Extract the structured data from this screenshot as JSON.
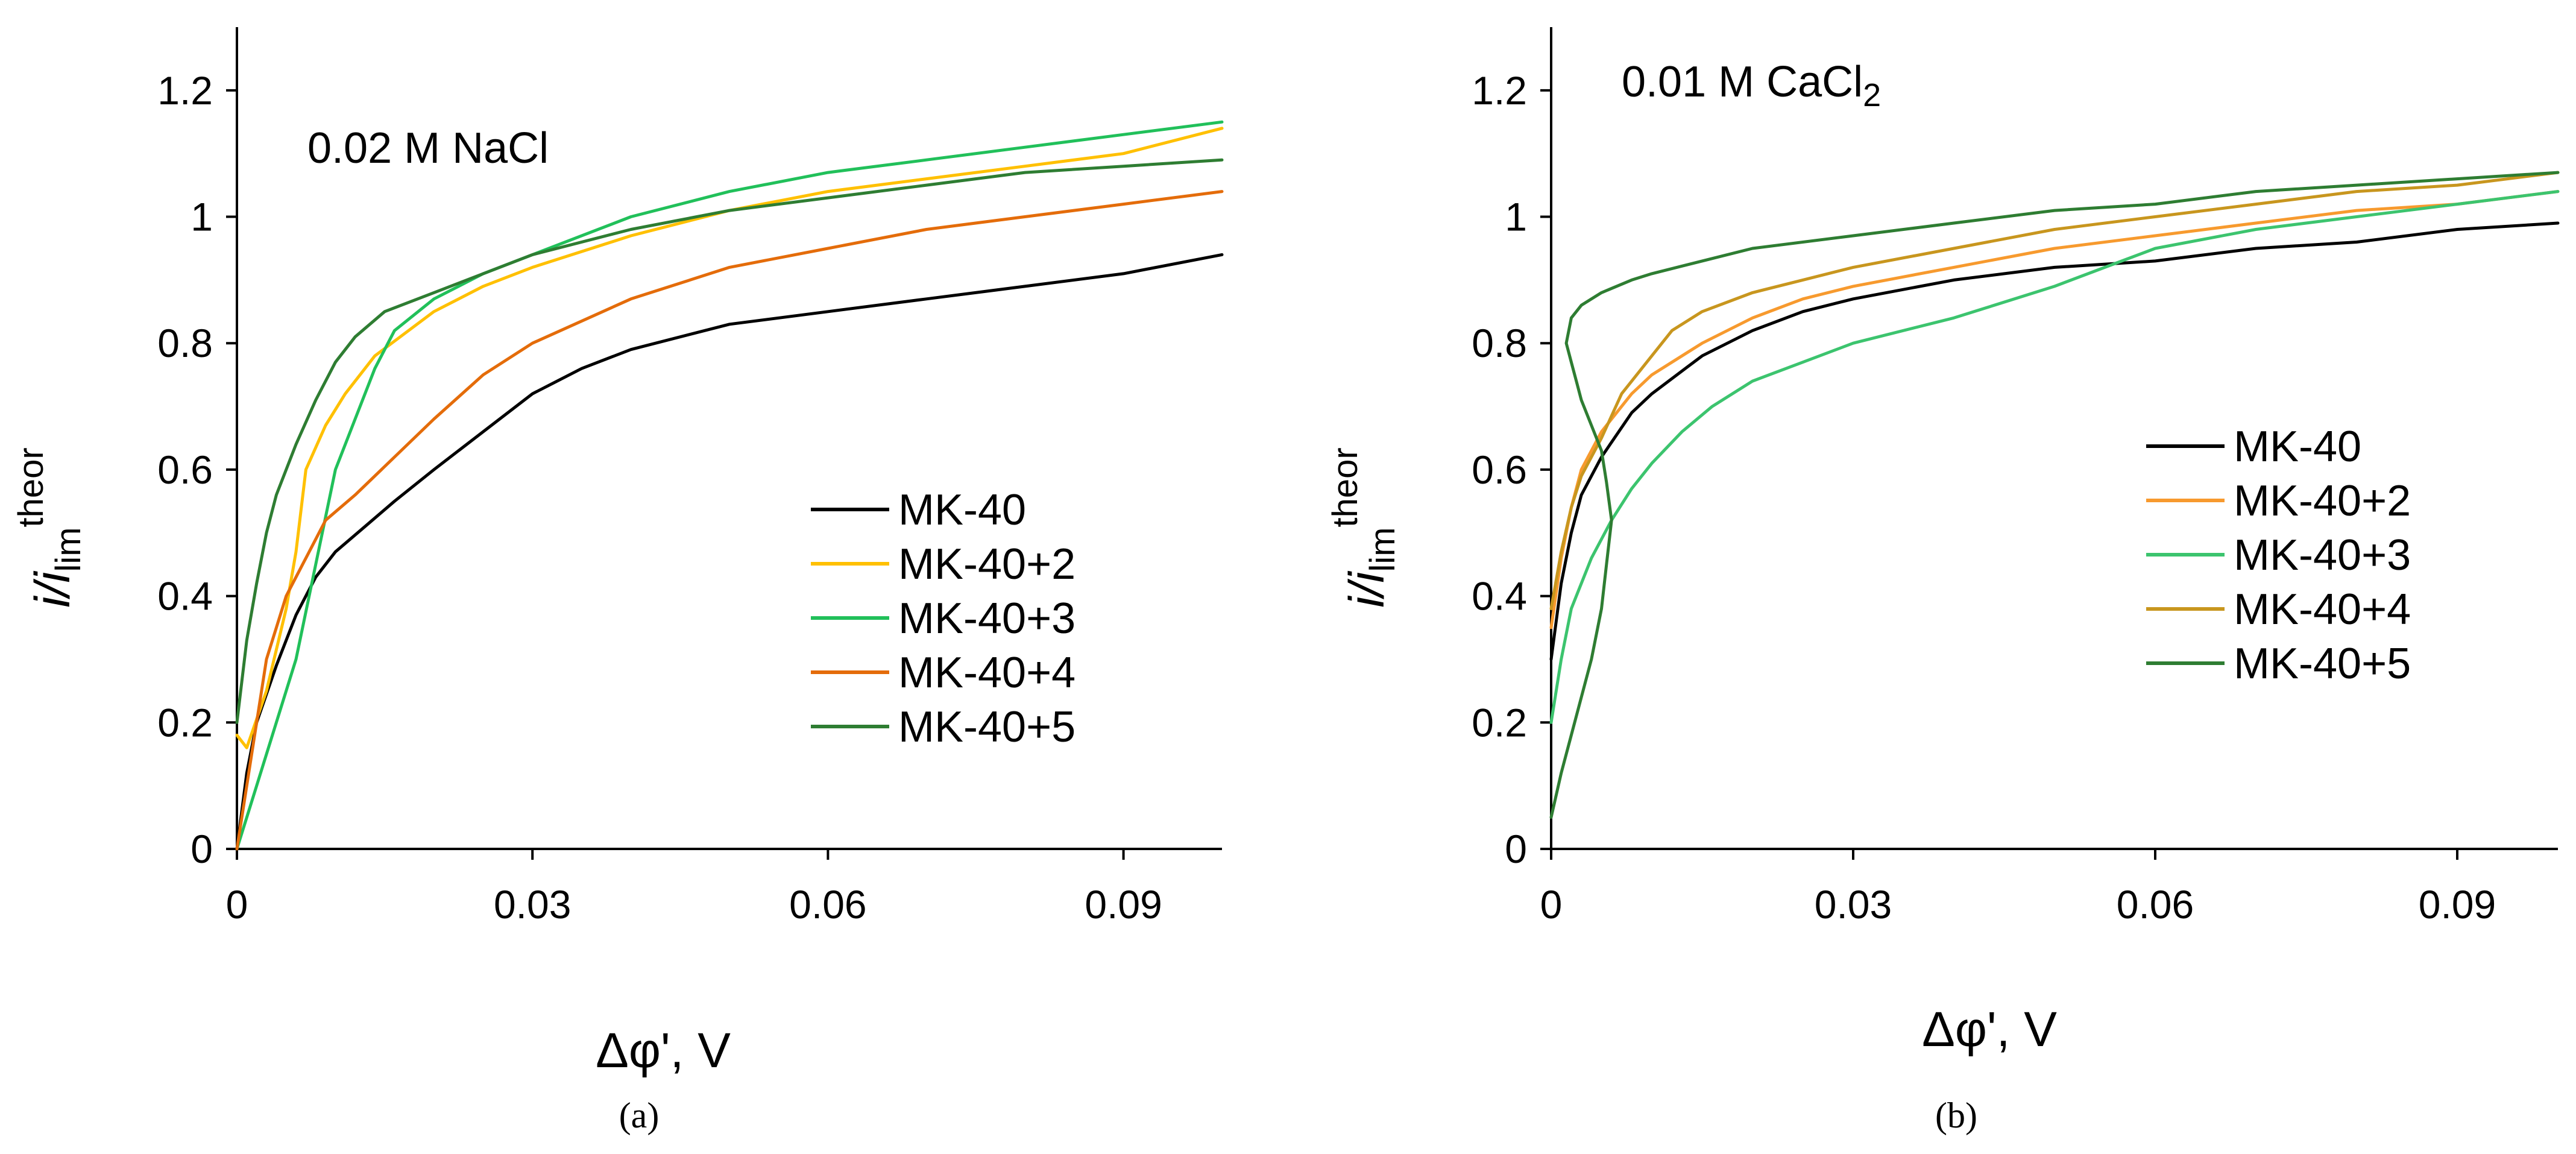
{
  "chart_data": [
    {
      "type": "line",
      "panel_label": "(a)",
      "annotation": "0.02 M NaCl",
      "xlabel": "Δφ', V",
      "ylabel": {
        "main": "i/i",
        "sub": "lim",
        "sup": "theor"
      },
      "xlim": [
        0,
        0.1
      ],
      "ylim": [
        0,
        1.3
      ],
      "x_ticks": [
        0,
        0.03,
        0.06,
        0.09
      ],
      "x_tick_labels": [
        "0",
        "0.03",
        "0.06",
        "0.09"
      ],
      "y_ticks": [
        0,
        0.2,
        0.4,
        0.6,
        0.8,
        1,
        1.2
      ],
      "y_tick_labels": [
        "0",
        "0.2",
        "0.4",
        "0.6",
        "0.8",
        "1",
        "1.2"
      ],
      "legend_position": "lower-right",
      "series": [
        {
          "name": "MK-40",
          "color": "#000000",
          "x": [
            0,
            0.001,
            0.002,
            0.004,
            0.006,
            0.008,
            0.01,
            0.013,
            0.016,
            0.02,
            0.025,
            0.03,
            0.035,
            0.04,
            0.05,
            0.06,
            0.07,
            0.08,
            0.09,
            0.1
          ],
          "y": [
            0,
            0.12,
            0.2,
            0.29,
            0.37,
            0.43,
            0.47,
            0.51,
            0.55,
            0.6,
            0.66,
            0.72,
            0.76,
            0.79,
            0.83,
            0.85,
            0.87,
            0.89,
            0.91,
            0.94
          ]
        },
        {
          "name": "MK-40+2",
          "color": "#FFC000",
          "x": [
            0,
            0.001,
            0.003,
            0.005,
            0.006,
            0.007,
            0.009,
            0.011,
            0.014,
            0.02,
            0.025,
            0.03,
            0.04,
            0.05,
            0.06,
            0.07,
            0.08,
            0.09,
            0.1
          ],
          "y": [
            0.18,
            0.16,
            0.25,
            0.38,
            0.47,
            0.6,
            0.67,
            0.72,
            0.78,
            0.85,
            0.89,
            0.92,
            0.97,
            1.01,
            1.04,
            1.06,
            1.08,
            1.1,
            1.14
          ]
        },
        {
          "name": "MK-40+3",
          "color": "#21C05A",
          "x": [
            0,
            0.002,
            0.004,
            0.006,
            0.008,
            0.01,
            0.012,
            0.014,
            0.016,
            0.02,
            0.025,
            0.03,
            0.04,
            0.05,
            0.06,
            0.07,
            0.08,
            0.09,
            0.1
          ],
          "y": [
            0,
            0.1,
            0.2,
            0.3,
            0.45,
            0.6,
            0.68,
            0.76,
            0.82,
            0.87,
            0.91,
            0.94,
            1.0,
            1.04,
            1.07,
            1.09,
            1.11,
            1.13,
            1.15
          ]
        },
        {
          "name": "MK-40+4",
          "color": "#E46C0A",
          "x": [
            0,
            0.001,
            0.002,
            0.003,
            0.004,
            0.005,
            0.006,
            0.007,
            0.009,
            0.012,
            0.016,
            0.02,
            0.025,
            0.03,
            0.04,
            0.05,
            0.06,
            0.07,
            0.08,
            0.09,
            0.1
          ],
          "y": [
            0,
            0.1,
            0.2,
            0.3,
            0.35,
            0.4,
            0.43,
            0.46,
            0.52,
            0.56,
            0.62,
            0.68,
            0.75,
            0.8,
            0.87,
            0.92,
            0.95,
            0.98,
            1.0,
            1.02,
            1.04
          ]
        },
        {
          "name": "MK-40+5",
          "color": "#2E7D32",
          "x": [
            0,
            0.001,
            0.002,
            0.003,
            0.004,
            0.006,
            0.008,
            0.01,
            0.012,
            0.015,
            0.02,
            0.025,
            0.03,
            0.04,
            0.05,
            0.06,
            0.07,
            0.08,
            0.09,
            0.1
          ],
          "y": [
            0.2,
            0.33,
            0.42,
            0.5,
            0.56,
            0.64,
            0.71,
            0.77,
            0.81,
            0.85,
            0.88,
            0.91,
            0.94,
            0.98,
            1.01,
            1.03,
            1.05,
            1.07,
            1.08,
            1.09
          ]
        }
      ]
    },
    {
      "type": "line",
      "panel_label": "(b)",
      "annotation": {
        "text": "0.01 M CaCl",
        "sub": "2"
      },
      "xlabel": "Δφ', V",
      "ylabel": {
        "main": "i/i",
        "sub": "lim",
        "sup": "theor"
      },
      "xlim": [
        0,
        0.1
      ],
      "ylim": [
        0,
        1.3
      ],
      "x_ticks": [
        0,
        0.03,
        0.06,
        0.09
      ],
      "x_tick_labels": [
        "0",
        "0.03",
        "0.06",
        "0.09"
      ],
      "y_ticks": [
        0,
        0.2,
        0.4,
        0.6,
        0.8,
        1,
        1.2
      ],
      "y_tick_labels": [
        "0",
        "0.2",
        "0.4",
        "0.6",
        "0.8",
        "1",
        "1.2"
      ],
      "legend_position": "right",
      "series": [
        {
          "name": "MK-40",
          "color": "#000000",
          "x": [
            0,
            0.001,
            0.002,
            0.003,
            0.005,
            0.008,
            0.01,
            0.015,
            0.02,
            0.025,
            0.03,
            0.04,
            0.05,
            0.06,
            0.07,
            0.08,
            0.09,
            0.1
          ],
          "y": [
            0.3,
            0.42,
            0.5,
            0.56,
            0.62,
            0.69,
            0.72,
            0.78,
            0.82,
            0.85,
            0.87,
            0.9,
            0.92,
            0.93,
            0.95,
            0.96,
            0.98,
            0.99
          ]
        },
        {
          "name": "MK-40+2",
          "color": "#F79A2E",
          "x": [
            0,
            0.001,
            0.002,
            0.003,
            0.005,
            0.008,
            0.01,
            0.015,
            0.02,
            0.025,
            0.03,
            0.04,
            0.05,
            0.06,
            0.07,
            0.08,
            0.09,
            0.1
          ],
          "y": [
            0.35,
            0.46,
            0.54,
            0.6,
            0.66,
            0.72,
            0.75,
            0.8,
            0.84,
            0.87,
            0.89,
            0.92,
            0.95,
            0.97,
            0.99,
            1.01,
            1.02,
            1.04
          ]
        },
        {
          "name": "MK-40+3",
          "color": "#3CC46E",
          "x": [
            0,
            0.001,
            0.002,
            0.004,
            0.006,
            0.008,
            0.01,
            0.013,
            0.016,
            0.02,
            0.025,
            0.03,
            0.04,
            0.05,
            0.055,
            0.06,
            0.07,
            0.08,
            0.09,
            0.1
          ],
          "y": [
            0.2,
            0.3,
            0.38,
            0.46,
            0.52,
            0.57,
            0.61,
            0.66,
            0.7,
            0.74,
            0.77,
            0.8,
            0.84,
            0.89,
            0.92,
            0.95,
            0.98,
            1.0,
            1.02,
            1.04
          ]
        },
        {
          "name": "MK-40+4",
          "color": "#C8961E",
          "x": [
            0,
            0.001,
            0.002,
            0.003,
            0.005,
            0.007,
            0.01,
            0.012,
            0.015,
            0.02,
            0.025,
            0.03,
            0.04,
            0.05,
            0.06,
            0.07,
            0.08,
            0.09,
            0.1
          ],
          "y": [
            0.38,
            0.47,
            0.54,
            0.59,
            0.65,
            0.72,
            0.78,
            0.82,
            0.85,
            0.88,
            0.9,
            0.92,
            0.95,
            0.98,
            1.0,
            1.02,
            1.04,
            1.05,
            1.07
          ]
        },
        {
          "name": "MK-40+5",
          "color": "#2E7D32",
          "x": [
            0,
            0.001,
            0.002,
            0.003,
            0.004,
            0.005,
            0.0055,
            0.006,
            0.0055,
            0.005,
            0.004,
            0.003,
            0.0025,
            0.002,
            0.0015,
            0.002,
            0.003,
            0.005,
            0.008,
            0.01,
            0.015,
            0.02,
            0.03,
            0.04,
            0.05,
            0.06,
            0.07,
            0.08,
            0.09,
            0.1
          ],
          "y": [
            0.05,
            0.12,
            0.18,
            0.24,
            0.3,
            0.38,
            0.45,
            0.52,
            0.58,
            0.63,
            0.67,
            0.71,
            0.74,
            0.77,
            0.8,
            0.84,
            0.86,
            0.88,
            0.9,
            0.91,
            0.93,
            0.95,
            0.97,
            0.99,
            1.01,
            1.02,
            1.04,
            1.05,
            1.06,
            1.07
          ]
        }
      ]
    }
  ]
}
